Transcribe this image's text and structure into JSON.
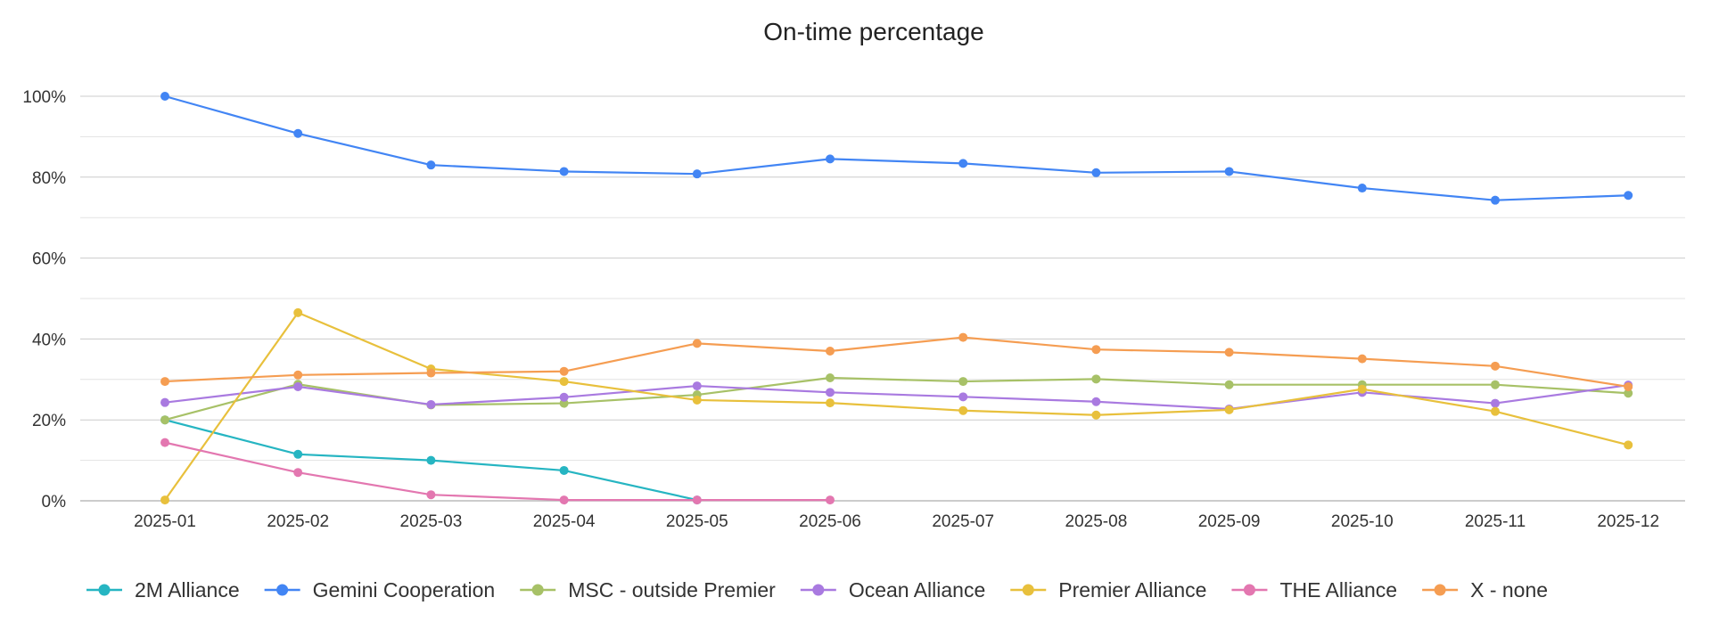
{
  "chart_data": {
    "type": "line",
    "title": "On-time percentage",
    "xlabel": "",
    "ylabel": "",
    "ylim": [
      0,
      100
    ],
    "y_ticks": [
      "0%",
      "20%",
      "40%",
      "60%",
      "80%",
      "100%"
    ],
    "y_tick_values": [
      0,
      20,
      40,
      60,
      80,
      100
    ],
    "grid": true,
    "legend_position": "bottom",
    "categories": [
      "2025-01",
      "2025-02",
      "2025-03",
      "2025-04",
      "2025-05",
      "2025-06",
      "2025-07",
      "2025-08",
      "2025-09",
      "2025-10",
      "2025-11",
      "2025-12"
    ],
    "series": [
      {
        "name": "2M Alliance",
        "color": "#26b5c2",
        "values": [
          20,
          11.5,
          10,
          7.5,
          0.2,
          null,
          null,
          null,
          null,
          null,
          null,
          null
        ]
      },
      {
        "name": "Gemini Cooperation",
        "color": "#4285f4",
        "values": [
          100,
          90.8,
          83,
          81.4,
          80.8,
          84.5,
          83.4,
          81.1,
          81.4,
          77.3,
          74.3,
          75.5
        ]
      },
      {
        "name": "MSC - outside Premier",
        "color": "#a7c167",
        "values": [
          20,
          28.8,
          23.7,
          24.1,
          26.2,
          30.4,
          29.5,
          30.1,
          28.7,
          28.7,
          28.7,
          26.6
        ]
      },
      {
        "name": "Ocean Alliance",
        "color": "#a97ae0",
        "values": [
          24.3,
          28.2,
          23.8,
          25.6,
          28.4,
          26.8,
          25.7,
          24.5,
          22.7,
          26.8,
          24.1,
          28.6
        ]
      },
      {
        "name": "Premier Alliance",
        "color": "#e8c03c",
        "values": [
          0.2,
          46.5,
          32.6,
          29.5,
          24.9,
          24.2,
          22.3,
          21.2,
          22.5,
          27.6,
          22.1,
          13.8
        ]
      },
      {
        "name": "THE Alliance",
        "color": "#e377b0",
        "values": [
          14.4,
          7,
          1.5,
          0.2,
          0.2,
          0.2,
          null,
          null,
          null,
          null,
          null,
          null
        ]
      },
      {
        "name": "X - none",
        "color": "#f59d52",
        "values": [
          29.5,
          31.1,
          31.6,
          32,
          38.9,
          37,
          40.4,
          37.4,
          36.7,
          35.1,
          33.3,
          28.2
        ]
      }
    ]
  }
}
